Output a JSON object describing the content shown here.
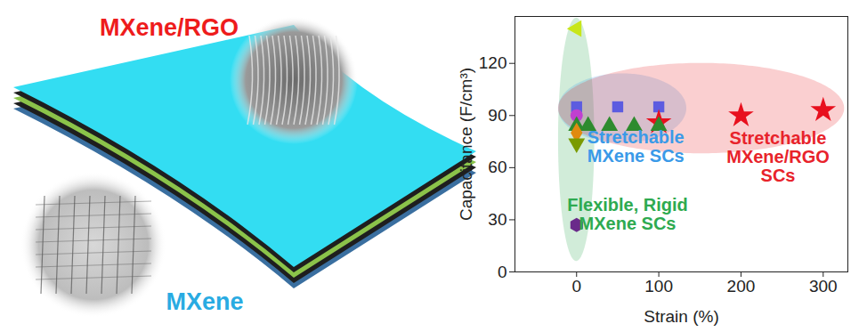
{
  "illustration": {
    "labels": [
      {
        "text": "MXene/RGO",
        "color": "#ee1c1c"
      },
      {
        "text": "MXene",
        "color": "#29abe2"
      }
    ]
  },
  "chart_data": {
    "type": "scatter",
    "x_label": "Strain (%)",
    "y_label": "Capacitance (F/cm³)",
    "xlim": [
      -75,
      330
    ],
    "xticks": [
      0,
      100,
      200,
      300
    ],
    "ylim": [
      0,
      147
    ],
    "yticks": [
      0,
      30,
      60,
      90,
      120
    ],
    "grid": false,
    "series": [
      {
        "color": "#c8e619",
        "marker": "triangle-left",
        "x": [
          0
        ],
        "values": [
          140
        ]
      },
      {
        "color": "#5c5ce0",
        "marker": "square",
        "x": [
          0,
          50,
          100
        ],
        "values": [
          95,
          95,
          95
        ]
      },
      {
        "color": "#c040d0",
        "marker": "circle",
        "x": [
          0
        ],
        "values": [
          90
        ]
      },
      {
        "color": "#e8101e",
        "marker": "star",
        "x": [
          100,
          200,
          300
        ],
        "values": [
          86,
          90,
          93
        ]
      },
      {
        "color": "#2e8b2e",
        "marker": "triangle",
        "x": [
          0,
          14,
          40,
          70,
          100
        ],
        "values": [
          84,
          84,
          84,
          84,
          84
        ]
      },
      {
        "color": "#e08a10",
        "marker": "diamond",
        "x": [
          0
        ],
        "values": [
          80
        ]
      },
      {
        "color": "#7a9a00",
        "marker": "triangle-down",
        "x": [
          0
        ],
        "values": [
          74
        ]
      },
      {
        "color": "#6a2a8a",
        "marker": "hexagon",
        "x": [
          0
        ],
        "values": [
          27
        ]
      }
    ],
    "regions": [
      {
        "label": "Flexible, Rigid\nMXene SCs",
        "color": "#2eaa50",
        "x": [
          -22,
          22
        ],
        "y": [
          6,
          146
        ],
        "label_x": 62,
        "label_y": 33
      },
      {
        "label": "Stretchable\nMXene SCs",
        "color": "#3a9ae8",
        "x": [
          -22,
          134
        ],
        "y": [
          74,
          114
        ],
        "label_x": 72,
        "label_y": 72
      },
      {
        "label": "Stretchable\nMXene/RGO\nSCs",
        "color": "#e8232b",
        "x": [
          -22,
          326
        ],
        "y": [
          68,
          120
        ],
        "label_x": 245,
        "label_y": 66
      }
    ]
  }
}
